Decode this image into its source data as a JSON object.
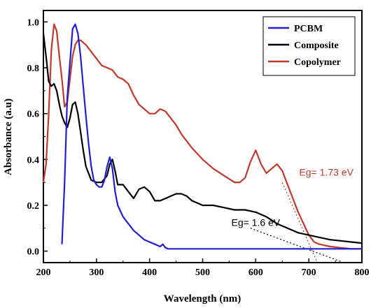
{
  "chart_data": {
    "type": "line",
    "xlabel": "Wavelength (nm)",
    "ylabel": "Absorbance (a.u)",
    "xlim": [
      200,
      800
    ],
    "ylim": [
      -0.05,
      1.05
    ],
    "xticks": [
      "200",
      "300",
      "400",
      "500",
      "600",
      "700",
      "800"
    ],
    "yticks": [
      "0.0",
      "0.2",
      "0.4",
      "0.6",
      "0.8",
      "1.0"
    ],
    "legend_position": "top-right",
    "series": [
      {
        "name": "PCBM",
        "color": "#1f1fd6",
        "x": [
          235,
          240,
          245,
          250,
          255,
          260,
          265,
          270,
          275,
          280,
          285,
          290,
          295,
          300,
          305,
          310,
          315,
          320,
          325,
          330,
          335,
          340,
          350,
          360,
          370,
          380,
          390,
          400,
          410,
          420,
          425,
          430,
          435,
          440,
          460,
          500,
          600,
          700,
          800
        ],
        "y": [
          0.03,
          0.3,
          0.67,
          0.82,
          0.97,
          0.99,
          0.95,
          0.85,
          0.72,
          0.59,
          0.47,
          0.37,
          0.31,
          0.29,
          0.28,
          0.28,
          0.31,
          0.37,
          0.41,
          0.36,
          0.26,
          0.2,
          0.15,
          0.12,
          0.09,
          0.07,
          0.05,
          0.04,
          0.03,
          0.02,
          0.03,
          0.015,
          0.01,
          0.01,
          0.01,
          0.01,
          0.01,
          0.01,
          0.01
        ]
      },
      {
        "name": "Composite",
        "color": "#000000",
        "x": [
          200,
          205,
          210,
          215,
          220,
          225,
          230,
          235,
          240,
          245,
          250,
          255,
          260,
          265,
          270,
          275,
          280,
          290,
          300,
          310,
          320,
          325,
          330,
          335,
          340,
          350,
          360,
          370,
          380,
          390,
          400,
          410,
          420,
          430,
          440,
          450,
          460,
          470,
          480,
          500,
          520,
          540,
          560,
          580,
          600,
          620,
          640,
          660,
          680,
          700,
          720,
          740,
          760,
          780,
          800
        ],
        "y": [
          0.95,
          0.85,
          0.74,
          0.72,
          0.73,
          0.7,
          0.64,
          0.59,
          0.56,
          0.54,
          0.58,
          0.64,
          0.65,
          0.6,
          0.52,
          0.44,
          0.37,
          0.31,
          0.3,
          0.3,
          0.33,
          0.38,
          0.4,
          0.35,
          0.29,
          0.29,
          0.26,
          0.23,
          0.27,
          0.28,
          0.26,
          0.22,
          0.22,
          0.23,
          0.24,
          0.25,
          0.25,
          0.24,
          0.22,
          0.2,
          0.2,
          0.19,
          0.18,
          0.18,
          0.17,
          0.15,
          0.12,
          0.1,
          0.08,
          0.07,
          0.06,
          0.05,
          0.045,
          0.04,
          0.035
        ]
      },
      {
        "name": "Copolymer",
        "color": "#c0392b",
        "x": [
          200,
          205,
          210,
          215,
          220,
          225,
          230,
          235,
          240,
          245,
          250,
          255,
          260,
          265,
          270,
          280,
          290,
          300,
          310,
          320,
          330,
          340,
          350,
          360,
          370,
          380,
          390,
          400,
          410,
          420,
          430,
          440,
          450,
          460,
          480,
          500,
          520,
          540,
          560,
          570,
          580,
          590,
          600,
          610,
          620,
          630,
          640,
          650,
          660,
          670,
          680,
          690,
          700,
          710,
          720,
          740,
          760,
          780,
          800
        ],
        "y": [
          0.3,
          0.38,
          0.6,
          0.88,
          0.99,
          0.96,
          0.85,
          0.75,
          0.63,
          0.65,
          0.75,
          0.85,
          0.9,
          0.92,
          0.92,
          0.9,
          0.87,
          0.84,
          0.81,
          0.8,
          0.79,
          0.76,
          0.75,
          0.73,
          0.68,
          0.64,
          0.62,
          0.6,
          0.6,
          0.62,
          0.61,
          0.58,
          0.55,
          0.51,
          0.45,
          0.4,
          0.36,
          0.33,
          0.3,
          0.3,
          0.32,
          0.39,
          0.44,
          0.38,
          0.34,
          0.36,
          0.38,
          0.35,
          0.29,
          0.23,
          0.17,
          0.12,
          0.07,
          0.04,
          0.03,
          0.02,
          0.015,
          0.01,
          0.01
        ]
      }
    ],
    "annotations": [
      {
        "text": "Eg= 1.6 eV",
        "x": 600,
        "y": 0.11,
        "color": "#000000"
      },
      {
        "text": "Eg= 1.73 eV",
        "x": 733,
        "y": 0.33,
        "color": "#c0392b"
      }
    ],
    "extrapolation_lines": [
      {
        "color": "#000000",
        "from": [
          590,
          0.1
        ],
        "to": [
          760,
          -0.045
        ]
      },
      {
        "color": "#c0392b",
        "from": [
          650,
          0.3
        ],
        "to": [
          715,
          -0.045
        ]
      }
    ]
  }
}
